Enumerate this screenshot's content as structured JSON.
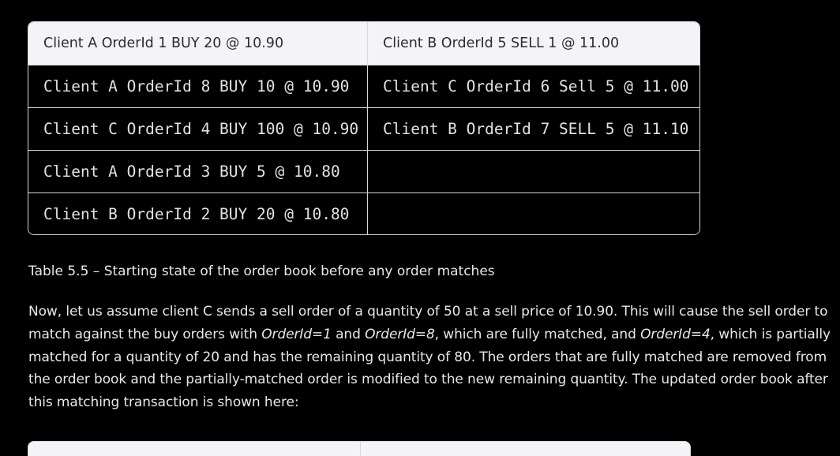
{
  "table": {
    "header": [
      "Client A OrderId 1 BUY 20 @ 10.90",
      "Client B OrderId 5 SELL 1 @ 11.00"
    ],
    "rows": [
      [
        "Client A OrderId 8 BUY 10 @ 10.90",
        "Client C OrderId 6 Sell 5 @ 11.00"
      ],
      [
        "Client C OrderId 4 BUY 100 @ 10.90",
        "Client B OrderId 7 SELL 5 @ 11.10"
      ],
      [
        "Client A OrderId 3 BUY 5 @ 10.80",
        ""
      ],
      [
        "Client B OrderId 2 BUY 20 @ 10.80",
        ""
      ]
    ]
  },
  "caption": "Table 5.5 – Starting state of the order book before any order matches",
  "paragraph": {
    "p1": "Now, let us assume client C sends a sell order of a quantity of 50 at a sell price of 10.90. This will cause the sell order to match against the buy orders with ",
    "em1": "OrderId=1",
    "p2": " and ",
    "em2": "OrderId=8",
    "p3": ", which are fully matched, and ",
    "em3": "OrderId=4",
    "p4": ", which is partially matched for a quantity of 20 and has the remaining quantity of 80. The orders that are fully matched are removed from the order book and the partially-matched order is modified to the new remaining quantity. The updated order book after this matching transaction is shown here:"
  }
}
